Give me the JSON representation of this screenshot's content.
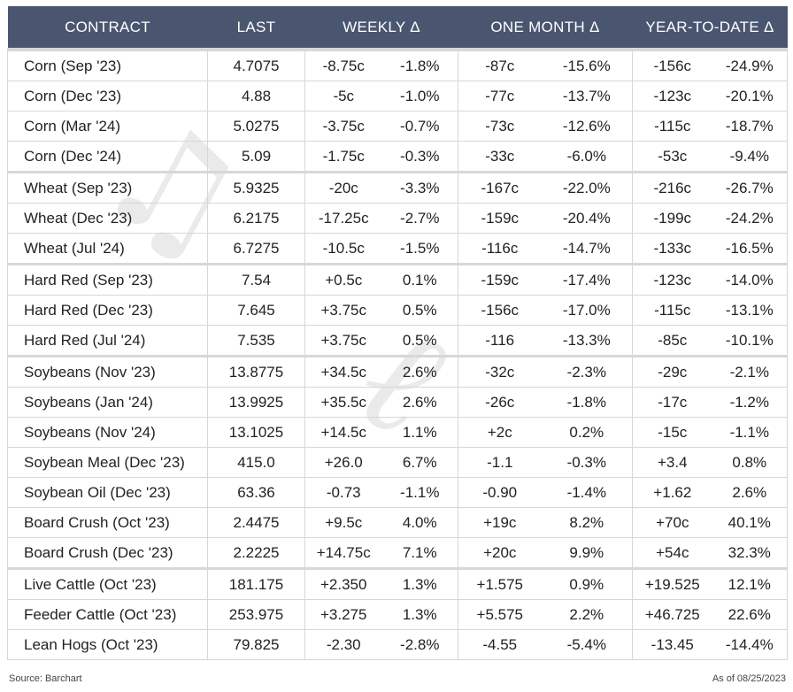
{
  "header": {
    "contract": "CONTRACT",
    "last": "LAST",
    "weekly": "WEEKLY Δ",
    "one_month": "ONE MONTH Δ",
    "ytd": "YEAR-TO-DATE Δ"
  },
  "colors": {
    "header_bg": "#4a5670",
    "negative": "#c0202a",
    "positive": "#1d7a32",
    "grid": "#d7d7d7"
  },
  "watermark_icon": "bull-icon",
  "rows": [
    {
      "name": "Corn (Sep '23)",
      "last": "4.7075",
      "w": "-8.75c",
      "wp": "-1.8%",
      "m": "-87c",
      "mp": "-15.6%",
      "y": "-156c",
      "yp": "-24.9%",
      "group_start": true
    },
    {
      "name": "Corn (Dec '23)",
      "last": "4.88",
      "w": "-5c",
      "wp": "-1.0%",
      "m": "-77c",
      "mp": "-13.7%",
      "y": "-123c",
      "yp": "-20.1%"
    },
    {
      "name": "Corn (Mar '24)",
      "last": "5.0275",
      "w": "-3.75c",
      "wp": "-0.7%",
      "m": "-73c",
      "mp": "-12.6%",
      "y": "-115c",
      "yp": "-18.7%"
    },
    {
      "name": "Corn (Dec '24)",
      "last": "5.09",
      "w": "-1.75c",
      "wp": "-0.3%",
      "m": "-33c",
      "mp": "-6.0%",
      "y": "-53c",
      "yp": "-9.4%"
    },
    {
      "name": "Wheat (Sep '23)",
      "last": "5.9325",
      "w": "-20c",
      "wp": "-3.3%",
      "m": "-167c",
      "mp": "-22.0%",
      "y": "-216c",
      "yp": "-26.7%",
      "group_start": true
    },
    {
      "name": "Wheat (Dec '23)",
      "last": "6.2175",
      "w": "-17.25c",
      "wp": "-2.7%",
      "m": "-159c",
      "mp": "-20.4%",
      "y": "-199c",
      "yp": "-24.2%"
    },
    {
      "name": "Wheat (Jul '24)",
      "last": "6.7275",
      "w": "-10.5c",
      "wp": "-1.5%",
      "m": "-116c",
      "mp": "-14.7%",
      "y": "-133c",
      "yp": "-16.5%"
    },
    {
      "name": "Hard Red (Sep '23)",
      "last": "7.54",
      "w": "+0.5c",
      "wp": "0.1%",
      "m": "-159c",
      "mp": "-17.4%",
      "y": "-123c",
      "yp": "-14.0%",
      "group_start": true
    },
    {
      "name": "Hard Red (Dec '23)",
      "last": "7.645",
      "w": "+3.75c",
      "wp": "0.5%",
      "m": "-156c",
      "mp": "-17.0%",
      "y": "-115c",
      "yp": "-13.1%"
    },
    {
      "name": "Hard Red (Jul '24)",
      "last": "7.535",
      "w": "+3.75c",
      "wp": "0.5%",
      "m": "-116",
      "mp": "-13.3%",
      "y": "-85c",
      "yp": "-10.1%"
    },
    {
      "name": "Soybeans (Nov '23)",
      "last": "13.8775",
      "w": "+34.5c",
      "wp": "2.6%",
      "m": "-32c",
      "mp": "-2.3%",
      "y": "-29c",
      "yp": "-2.1%",
      "group_start": true
    },
    {
      "name": "Soybeans (Jan '24)",
      "last": "13.9925",
      "w": "+35.5c",
      "wp": "2.6%",
      "m": "-26c",
      "mp": "-1.8%",
      "y": "-17c",
      "yp": "-1.2%"
    },
    {
      "name": "Soybeans (Nov '24)",
      "last": "13.1025",
      "w": "+14.5c",
      "wp": "1.1%",
      "m": "+2c",
      "mp": "0.2%",
      "y": "-15c",
      "yp": "-1.1%"
    },
    {
      "name": "Soybean Meal (Dec '23)",
      "last": "415.0",
      "w": "+26.0",
      "wp": "6.7%",
      "m": "-1.1",
      "mp": "-0.3%",
      "y": "+3.4",
      "yp": "0.8%"
    },
    {
      "name": "Soybean Oil (Dec '23)",
      "last": "63.36",
      "w": "-0.73",
      "wp": "-1.1%",
      "m": "-0.90",
      "mp": "-1.4%",
      "y": "+1.62",
      "yp": "2.6%"
    },
    {
      "name": "Board Crush (Oct '23)",
      "last": "2.4475",
      "w": "+9.5c",
      "wp": "4.0%",
      "m": "+19c",
      "mp": "8.2%",
      "y": "+70c",
      "yp": "40.1%"
    },
    {
      "name": "Board Crush (Dec '23)",
      "last": "2.2225",
      "w": "+14.75c",
      "wp": "7.1%",
      "m": "+20c",
      "mp": "9.9%",
      "y": "+54c",
      "yp": "32.3%"
    },
    {
      "name": "Live Cattle (Oct '23)",
      "last": "181.175",
      "w": "+2.350",
      "wp": "1.3%",
      "m": "+1.575",
      "mp": "0.9%",
      "y": "+19.525",
      "yp": "12.1%",
      "group_start": true
    },
    {
      "name": "Feeder Cattle (Oct '23)",
      "last": "253.975",
      "w": "+3.275",
      "wp": "1.3%",
      "m": "+5.575",
      "mp": "2.2%",
      "y": "+46.725",
      "yp": "22.6%"
    },
    {
      "name": "Lean Hogs (Oct '23)",
      "last": "79.825",
      "w": "-2.30",
      "wp": "-2.8%",
      "m": "-4.55",
      "mp": "-5.4%",
      "y": "-13.45",
      "yp": "-14.4%"
    }
  ],
  "footer": {
    "source": "Source: Barchart",
    "as_of": "As of 08/25/2023"
  }
}
